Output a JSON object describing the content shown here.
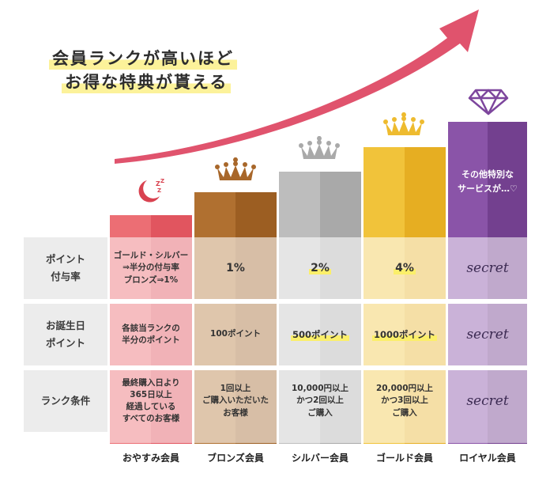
{
  "headline": {
    "line1": "会員ランクが高いほど",
    "line2": "お得な特典が貰える"
  },
  "row_labels": {
    "point_rate": "ポイント\n付与率",
    "birthday": "お誕生日\nポイント",
    "condition": "ランク条件"
  },
  "tiers": [
    {
      "name": "おやすみ会員",
      "icon": "sleep-moon-icon",
      "point_rate": "ゴールド・シルバー\n⇒半分の付与率\nブロンズ⇒1%",
      "birthday": "各該当ランクの\n半分のポイント",
      "condition": "最終購入日より\n365日以上\n経過している\nすべてのお客様"
    },
    {
      "name": "ブロンズ会員",
      "icon": "crown-icon",
      "point_rate": "1%",
      "birthday": "100ポイント",
      "condition": "1回以上\nご購入いただいた\nお客様"
    },
    {
      "name": "シルバー会員",
      "icon": "crown-icon",
      "point_rate": "2%",
      "birthday": "500ポイント",
      "condition": "10,000円以上\nかつ2回以上\nご購入"
    },
    {
      "name": "ゴールド会員",
      "icon": "crown-icon",
      "point_rate": "4%",
      "birthday": "1000ポイント",
      "condition": "20,000円以上\nかつ3回以上\nご購入"
    },
    {
      "name": "ロイヤル会員",
      "icon": "diamond-icon",
      "extra": "その他特別な\nサービスが…♡",
      "point_rate": "secret",
      "birthday": "secret",
      "condition": "secret"
    }
  ],
  "colors": {
    "arrow": "#e0536d",
    "headline_highlight": "#fcf29a",
    "oyasumi": "#e5646c",
    "bronze": "#a8672a",
    "silver": "#b4b4b4",
    "gold": "#eebb2f",
    "royal": "#7d469d"
  }
}
